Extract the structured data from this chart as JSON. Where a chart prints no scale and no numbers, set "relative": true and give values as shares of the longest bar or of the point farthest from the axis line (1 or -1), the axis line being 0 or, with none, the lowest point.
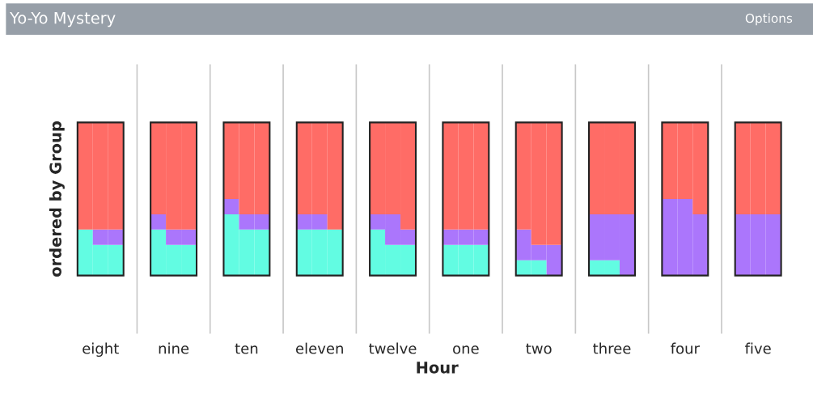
{
  "chart_data": {
    "type": "bar",
    "title": "Yo-Yo Mystery",
    "xlabel": "Hour",
    "ylabel": "ordered by Group",
    "annotations": [
      "Options"
    ],
    "categories": [
      null,
      "eight",
      null,
      null,
      "nine",
      null,
      null,
      "ten",
      null,
      null,
      "eleven",
      null,
      null,
      "twelve",
      null,
      null,
      "one",
      null,
      null,
      "two",
      null,
      null,
      "three",
      null,
      null,
      "four",
      null,
      null,
      "five",
      null
    ],
    "stacked": true,
    "relative": true,
    "grid": false,
    "legend": false,
    "series": [
      {
        "color": "#62fce2",
        "values": [
          0.3,
          0.2,
          0.2,
          0.3,
          0.2,
          0.2,
          0.4,
          0.3,
          0.3,
          0.3,
          0.3,
          0.3,
          0.3,
          0.2,
          0.2,
          0.2,
          0.2,
          0.2,
          0.1,
          0.1,
          0,
          0.1,
          0.1,
          0,
          0,
          0,
          0,
          0,
          0,
          0
        ]
      },
      {
        "color": "#ab76fc",
        "values": [
          0,
          0.1,
          0.1,
          0.1,
          0.1,
          0.1,
          0.1,
          0.1,
          0.1,
          0.1,
          0.1,
          0,
          0.1,
          0.2,
          0.1,
          0.1,
          0.1,
          0.1,
          0.2,
          0.1,
          0.2,
          0.3,
          0.3,
          0.4,
          0.5,
          0.5,
          0.4,
          0.4,
          0.4,
          0.4
        ]
      },
      {
        "color": "#ff6c66",
        "values": [
          0.7,
          0.7,
          0.7,
          0.6,
          0.7,
          0.7,
          0.5,
          0.6,
          0.6,
          0.6,
          0.6,
          0.7,
          0.6,
          0.6,
          0.7,
          0.7,
          0.7,
          0.7,
          0.7,
          0.8,
          0.8,
          0.6,
          0.6,
          0.6,
          0.5,
          0.5,
          0.6,
          0.6,
          0.6,
          0.6
        ]
      }
    ]
  }
}
